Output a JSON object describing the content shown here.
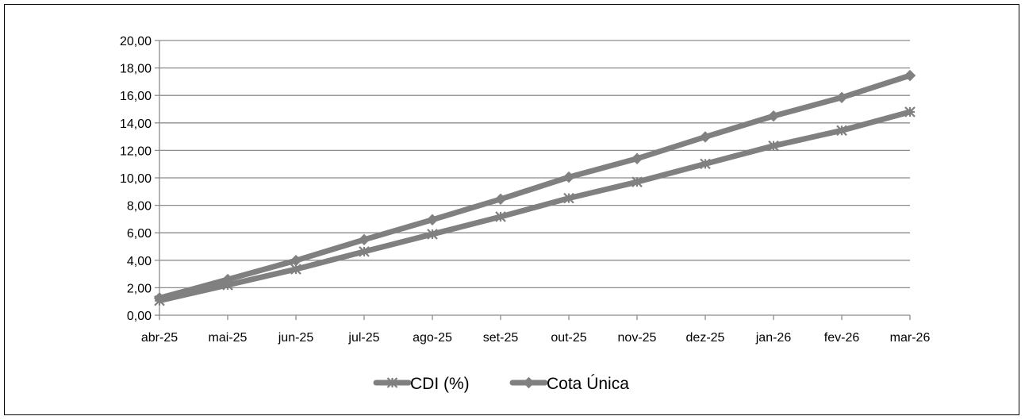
{
  "chart_data": {
    "type": "line",
    "categories": [
      "abr-25",
      "mai-25",
      "jun-25",
      "jul-25",
      "ago-25",
      "set-25",
      "out-25",
      "nov-25",
      "dez-25",
      "jan-26",
      "fev-26",
      "mar-26"
    ],
    "series": [
      {
        "name": "CDI (%)",
        "marker": "asterisk",
        "color": "#808080",
        "values": [
          1.06,
          2.2,
          3.35,
          4.63,
          5.9,
          7.17,
          8.52,
          9.7,
          11.02,
          12.33,
          13.45,
          14.8
        ]
      },
      {
        "name": "Cota Única",
        "marker": "diamond",
        "color": "#808080",
        "values": [
          1.25,
          2.6,
          3.98,
          5.5,
          6.95,
          8.45,
          10.05,
          11.4,
          12.98,
          14.5,
          15.85,
          17.45
        ]
      }
    ],
    "y_ticks": [
      "0,00",
      "2,00",
      "4,00",
      "6,00",
      "8,00",
      "10,00",
      "12,00",
      "14,00",
      "16,00",
      "18,00",
      "20,00"
    ],
    "ylim": [
      0,
      20
    ],
    "grid": "horizontal",
    "legend": "bottom"
  }
}
